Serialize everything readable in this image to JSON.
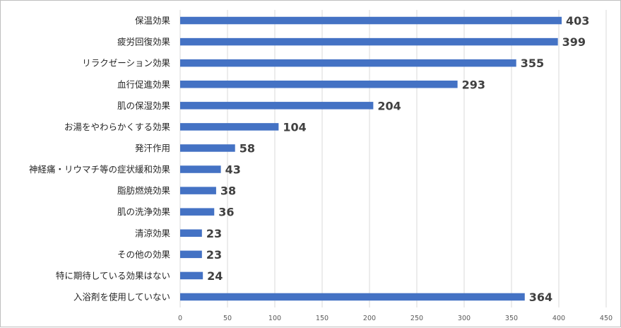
{
  "chart_data": {
    "type": "bar",
    "orientation": "horizontal",
    "categories": [
      "保温効果",
      "疲労回復効果",
      "リラクゼーション効果",
      "血行促進効果",
      "肌の保湿効果",
      "お湯をやわらかくする効果",
      "発汗作用",
      "神経痛・リウマチ等の症状緩和効果",
      "脂肪燃焼効果",
      "肌の洗浄効果",
      "清涼効果",
      "その他の効果",
      "特に期待している効果はない",
      "入浴剤を使用していない"
    ],
    "values": [
      403,
      399,
      355,
      293,
      204,
      104,
      58,
      43,
      38,
      36,
      23,
      23,
      24,
      364
    ],
    "xlim": [
      0,
      450
    ],
    "xticks": [
      "0",
      "50",
      "100",
      "150",
      "200",
      "250",
      "300",
      "350",
      "400",
      "450"
    ],
    "grid": "vertical",
    "bar_color": "#4472c4",
    "title": "",
    "xlabel": "",
    "ylabel": ""
  }
}
